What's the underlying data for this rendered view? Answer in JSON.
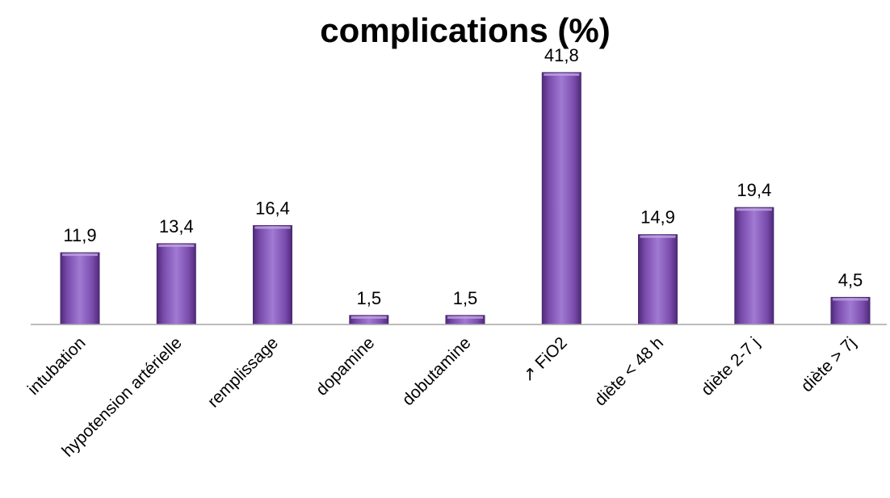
{
  "chart_data": {
    "type": "bar",
    "title": "complications (%)",
    "categories": [
      "intubation",
      "hypotension artérielle",
      "remplissage",
      "dopamine",
      "dobutamine",
      "↗ FiO2",
      "diète < 48 h",
      "diète 2-7 j",
      "diète > 7j"
    ],
    "values": [
      11.9,
      13.4,
      16.4,
      1.5,
      1.5,
      41.8,
      14.9,
      19.4,
      4.5
    ],
    "value_labels": [
      "11,9",
      "13,4",
      "16,4",
      "1,5",
      "1,5",
      "41,8",
      "14,9",
      "19,4",
      "4,5"
    ],
    "xlabel": "",
    "ylabel": "",
    "ylim": [
      0,
      45
    ],
    "grid": false,
    "legend": "none",
    "bar_color": "#8d5fbf",
    "bar_edge_color": "#4a2a6e",
    "axis_color": "#a6a6a6"
  }
}
